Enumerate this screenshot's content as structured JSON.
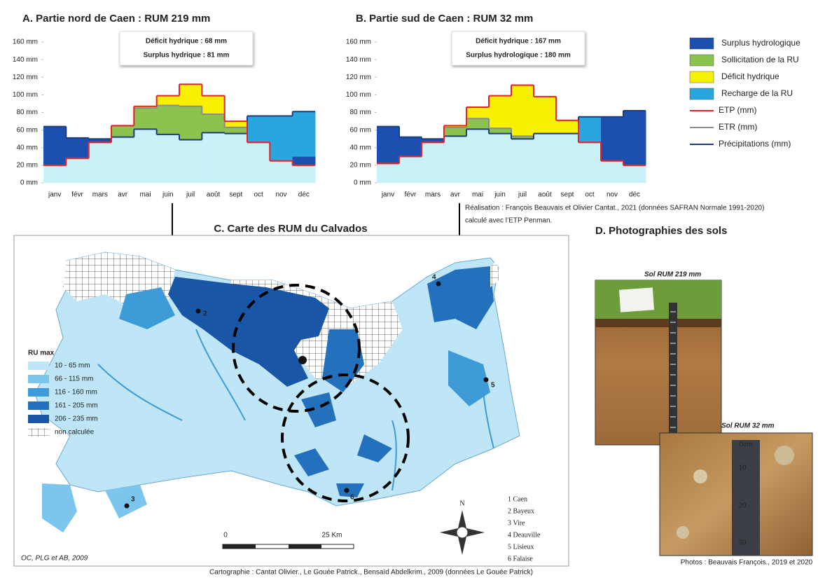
{
  "chart_data": [
    {
      "type": "step",
      "title": "A. Partie nord de Caen : RUM 219 mm",
      "annotations": [
        {
          "text": "Déficit hydrique : 68 mm",
          "color": "#e8202a"
        },
        {
          "text": "Surplus hydrique : 81 mm",
          "color": "#1f3b7a"
        }
      ],
      "categories": [
        "janv",
        "févr",
        "mars",
        "avr",
        "mai",
        "juin",
        "juil",
        "août",
        "sept",
        "oct",
        "nov",
        "déc"
      ],
      "series": [
        {
          "name": "ETP (mm)",
          "color": "#e8202a",
          "values": [
            20,
            28,
            46,
            65,
            87,
            99,
            112,
            99,
            70,
            46,
            25,
            20
          ]
        },
        {
          "name": "ETR (mm)",
          "color": "#8c8c8c",
          "values": [
            20,
            28,
            46,
            65,
            85,
            88,
            87,
            78,
            63,
            46,
            25,
            20
          ]
        },
        {
          "name": "Précipitations (mm)",
          "color": "#1f3b7a",
          "values": [
            64,
            51,
            50,
            52,
            61,
            55,
            49,
            57,
            56,
            76,
            76,
            81
          ]
        }
      ],
      "recharge": [
        0,
        0,
        0,
        0,
        0,
        0,
        0,
        0,
        0,
        30,
        51,
        51
      ],
      "ylim": [
        0,
        160
      ],
      "yticks": [
        {
          "value": 0,
          "label": "0 mm"
        },
        {
          "value": 20,
          "label": "20 mm"
        },
        {
          "value": 40,
          "label": "40 mm"
        },
        {
          "value": 60,
          "label": "60 mm"
        },
        {
          "value": 80,
          "label": "80 mm"
        },
        {
          "value": 100,
          "label": "100 mm"
        },
        {
          "value": 120,
          "label": "120 mm"
        },
        {
          "value": 140,
          "label": "140 mm"
        },
        {
          "value": 160,
          "label": "160 mm"
        }
      ]
    },
    {
      "type": "step",
      "title": "B. Partie sud de Caen : RUM 32 mm",
      "annotations": [
        {
          "text": "Déficit hydrique : 167 mm",
          "color": "#e8202a"
        },
        {
          "text": "Surplus hydrologique : 180 mm",
          "color": "#1f3b7a"
        }
      ],
      "categories": [
        "janv",
        "févr",
        "mars",
        "avr",
        "mai",
        "juin",
        "juil",
        "août",
        "sept",
        "oct",
        "nov",
        "déc"
      ],
      "series": [
        {
          "name": "ETP (mm)",
          "color": "#e8202a",
          "values": [
            22,
            30,
            46,
            65,
            86,
            99,
            111,
            98,
            71,
            46,
            25,
            20
          ]
        },
        {
          "name": "ETR (mm)",
          "color": "#8c8c8c",
          "values": [
            22,
            30,
            46,
            63,
            73,
            62,
            53,
            56,
            56,
            46,
            25,
            20
          ]
        },
        {
          "name": "Précipitations (mm)",
          "color": "#1f3b7a",
          "values": [
            64,
            52,
            50,
            53,
            61,
            56,
            50,
            56,
            56,
            75,
            75,
            82
          ]
        }
      ],
      "recharge": [
        0,
        0,
        0,
        0,
        0,
        0,
        0,
        0,
        0,
        29,
        0,
        0
      ],
      "ylim": [
        0,
        160
      ],
      "yticks": [
        {
          "value": 0,
          "label": "0 mm"
        },
        {
          "value": 20,
          "label": "20 mm"
        },
        {
          "value": 40,
          "label": "40 mm"
        },
        {
          "value": 60,
          "label": "60 mm"
        },
        {
          "value": 80,
          "label": "80 mm"
        },
        {
          "value": 100,
          "label": "100 mm"
        },
        {
          "value": 120,
          "label": "120 mm"
        },
        {
          "value": 140,
          "label": "140 mm"
        },
        {
          "value": 160,
          "label": "160 mm"
        }
      ]
    }
  ],
  "legend": {
    "areas": [
      {
        "name": "Surplus hydrologique",
        "color": "#1b4fb0"
      },
      {
        "name": "Sollicitation de la RU",
        "color": "#8cc34f"
      },
      {
        "name": "Déficit hydrique",
        "color": "#f7f000"
      },
      {
        "name": "Recharge de la RU",
        "color": "#29a6e0"
      }
    ]
  },
  "realisation": [
    "Réalisation : François Beauvais et Olivier Cantat., 2021 (données SAFRAN Normale 1991-2020)",
    "calculé avec l’ETP Penman."
  ],
  "map": {
    "title": "C. Carte des RUM du Calvados",
    "legend_title": "RU max",
    "classes": [
      {
        "label": "10 - 65 mm",
        "color": "#bfe6f6"
      },
      {
        "label": "66 - 115 mm",
        "color": "#7cc6ee"
      },
      {
        "label": "116 - 160 mm",
        "color": "#3f9ad8"
      },
      {
        "label": "161 - 205 mm",
        "color": "#2370bd"
      },
      {
        "label": "206 - 235 mm",
        "color": "#1a56a6"
      }
    ],
    "not_computed": "non calculée",
    "markers": [
      "2",
      "3",
      "4",
      "5",
      "6"
    ],
    "towns": [
      "1 Caen",
      "2 Bayeux",
      "3 Vire",
      "4 Deauville",
      "5 Lisieux",
      "6 Falaise"
    ],
    "north": "N",
    "scale": [
      "0",
      "25 Km"
    ],
    "author": "OC, PLG et AB, 2009",
    "credit": "Cartographie : Cantat Olivier., Le Gouée Patrick., Bensaïd Abdelkrim., 2009 (données Le Gouée Patrick)"
  },
  "photos": {
    "title": "D. Photographies des sols",
    "captions": [
      "Sol RUM 219 mm",
      "Sol RUM 32 mm"
    ],
    "ruler": [
      "0cm",
      "10",
      "20",
      "30"
    ],
    "credit": "Photos : Beauvais François., 2019 et 2020"
  }
}
